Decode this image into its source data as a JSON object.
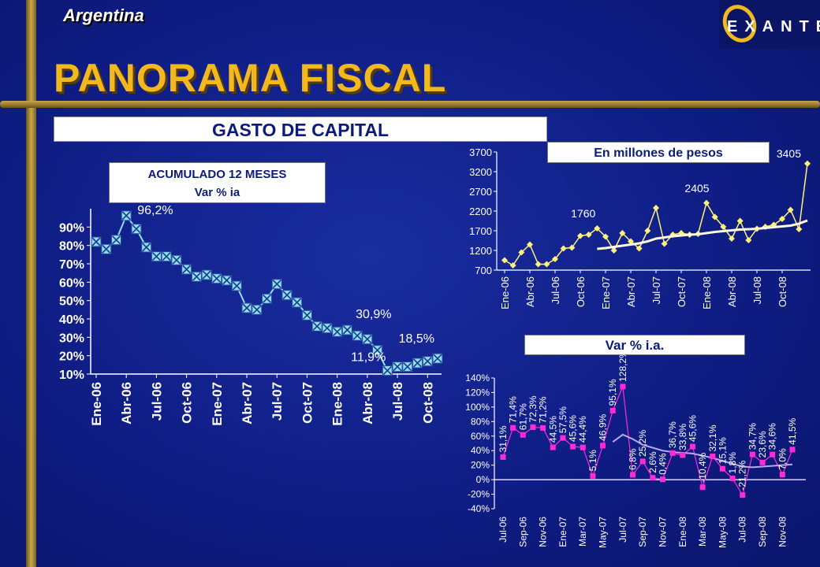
{
  "header": {
    "country": "Argentina",
    "title": "PANORAMA FISCAL",
    "logo_text": "EXANTE"
  },
  "section_title": "GASTO DE CAPITAL",
  "chart_data": [
    {
      "type": "line",
      "title": "ACUMULADO 12 MESES",
      "subtitle": "Var % ia",
      "series": [
        {
          "values": [
            82,
            78,
            83,
            96.2,
            89,
            79,
            74,
            74,
            72,
            67,
            63,
            64,
            62,
            61,
            58,
            46,
            45,
            51,
            59,
            53,
            49,
            42,
            36,
            35,
            33,
            34,
            30.9,
            29,
            23,
            11.9,
            14,
            14,
            16,
            17,
            18.5
          ]
        }
      ],
      "ytick_labels": [
        "10%",
        "20%",
        "30%",
        "40%",
        "50%",
        "60%",
        "70%",
        "80%",
        "90%"
      ],
      "xtick_labels": [
        "Ene-06",
        "Abr-06",
        "Jul-06",
        "Oct-06",
        "Ene-07",
        "Abr-07",
        "Jul-07",
        "Oct-07",
        "Ene-08",
        "Abr-08",
        "Jul-08",
        "Oct-08"
      ],
      "ylim": [
        10,
        100
      ],
      "annotations": [
        {
          "index": 3,
          "text": "96,2%"
        },
        {
          "index": 26,
          "text": "30,9%"
        },
        {
          "index": 29,
          "text": "11,9%"
        },
        {
          "index": 34,
          "text": "18,5%"
        }
      ]
    },
    {
      "type": "line",
      "title": "En millones de pesos",
      "series": [
        {
          "values": [
            950,
            820,
            1150,
            1350,
            850,
            850,
            980,
            1250,
            1270,
            1570,
            1600,
            1760,
            1550,
            1200,
            1640,
            1430,
            1250,
            1700,
            2280,
            1370,
            1600,
            1640,
            1600,
            1620,
            2405,
            2050,
            1800,
            1500,
            1950,
            1460,
            1750,
            1800,
            1850,
            2000,
            2230,
            1740,
            3405
          ]
        },
        {
          "values": [
            null,
            null,
            null,
            null,
            null,
            null,
            null,
            null,
            null,
            null,
            null,
            1240,
            1260,
            1290,
            1320,
            1350,
            1380,
            1430,
            1500,
            1530,
            1560,
            1580,
            1600,
            1610,
            1640,
            1670,
            1690,
            1710,
            1730,
            1740,
            1750,
            1770,
            1790,
            1810,
            1830,
            1880,
            1960
          ]
        }
      ],
      "ytick_labels": [
        "700",
        "1200",
        "1700",
        "2200",
        "2700",
        "3200",
        "3700"
      ],
      "xtick_labels": [
        "Ene-06",
        "Abr-06",
        "Jul-06",
        "Oct-06",
        "Ene-07",
        "Abr-07",
        "Jul-07",
        "Oct-07",
        "Ene-08",
        "Abr-08",
        "Jul-08",
        "Oct-08"
      ],
      "ylim": [
        700,
        3700
      ],
      "annotations": [
        {
          "index": 11,
          "text": "1760"
        },
        {
          "index": 24,
          "text": "2405"
        },
        {
          "index": 36,
          "text": "3405"
        }
      ]
    },
    {
      "type": "line",
      "title": "Var % i.a.",
      "series": [
        {
          "values": [
            31.1,
            71.4,
            61.7,
            72.3,
            71.2,
            44.5,
            57.5,
            45.6,
            44.4,
            5.1,
            46.9,
            95.1,
            128.2,
            6.8,
            25.2,
            2.6,
            0.4,
            36.7,
            33.8,
            45.6,
            -10.4,
            32.1,
            15.1,
            1.8,
            -21.2,
            34.7,
            23.6,
            34.6,
            7.0,
            41.5
          ]
        },
        {
          "values": [
            null,
            null,
            null,
            null,
            null,
            null,
            null,
            null,
            null,
            null,
            null,
            52,
            62,
            56,
            48,
            44,
            40,
            38,
            37,
            36,
            33,
            30,
            26,
            22,
            18,
            17,
            18,
            19,
            20,
            21
          ]
        }
      ],
      "point_labels": [
        "31,1%",
        "71,4%",
        "61,7%",
        "72,3%",
        "71,2%",
        "44,5%",
        "57,5%",
        "45,6%",
        "44,4%",
        "5,1%",
        "46,9%",
        "95,1%",
        "128,2%",
        "6,8%",
        "25,2%",
        "2,6%",
        "0,4%",
        "36,7%",
        "33,8%",
        "45,6%",
        "-10,4%",
        "32,1%",
        "15,1%",
        "1,8%",
        "-21,2%",
        "34,7%",
        "23,6%",
        "34,6%",
        "7,0%",
        "41,5%"
      ],
      "ytick_labels": [
        "-40%",
        "-20%",
        "0%",
        "20%",
        "40%",
        "60%",
        "80%",
        "100%",
        "120%",
        "140%"
      ],
      "xtick_labels": [
        "Jul-06",
        "Sep-06",
        "Nov-06",
        "Ene-07",
        "Mar-07",
        "May-07",
        "Jul-07",
        "Sep-07",
        "Nov-07",
        "Ene-08",
        "Mar-08",
        "May-08",
        "Jul-08",
        "Sep-08",
        "Nov-08"
      ],
      "ylim": [
        -40,
        140
      ]
    }
  ],
  "colors": {
    "background": "#0f1d85",
    "accent_gold": "#f2b820",
    "cross_marker": "#8fe0ee",
    "diamond_marker": "#fff27a",
    "magenta_marker": "#ff2bd6",
    "trend_lavender": "#b8a8ee"
  }
}
